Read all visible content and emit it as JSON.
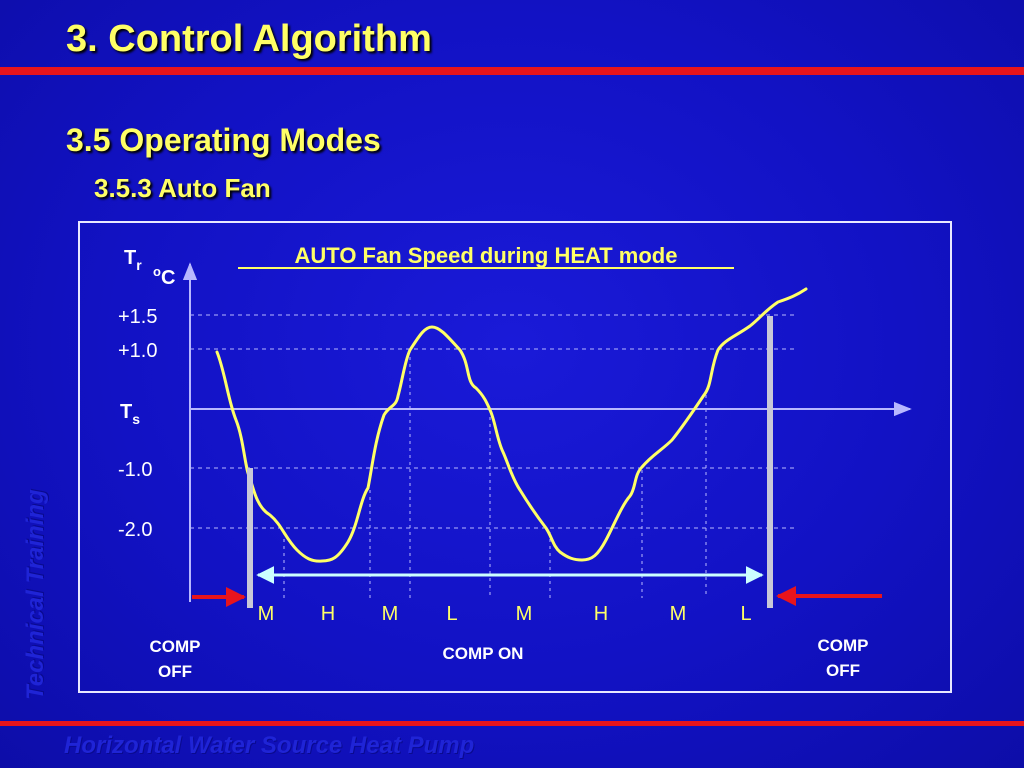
{
  "slide": {
    "title": "3. Control Algorithm",
    "section": "3.5 Operating Modes",
    "subsection": "3.5.3 Auto Fan",
    "side_text": "Technical Training",
    "footer_text": "Horizontal Water Source Heat Pump"
  },
  "diagram": {
    "heading": "AUTO Fan Speed during HEAT mode",
    "y_axis": {
      "symbol": "T",
      "subscript": "r",
      "unit": "oC"
    },
    "levels": [
      {
        "label": "+1.5",
        "value": 1.5
      },
      {
        "label": "+1.0",
        "value": 1.0
      },
      {
        "label": "-1.0",
        "value": -1.0
      },
      {
        "label": "-2.0",
        "value": -2.0
      }
    ],
    "setpoint": {
      "symbol": "T",
      "subscript": "s",
      "value": 0
    },
    "fan_speeds": [
      "M",
      "H",
      "M",
      "L",
      "M",
      "H",
      "M",
      "L"
    ],
    "comp_off_left": [
      "COMP",
      "OFF"
    ],
    "comp_on": "COMP ON",
    "comp_off_right": [
      "COMP",
      "OFF"
    ],
    "colors": {
      "curve": "#ffff66",
      "arrow_red": "#e8141c",
      "span_arrow": "#ccffff",
      "text": "#ffffff",
      "heading": "#ffff66",
      "axis": "#b8b8ff"
    }
  }
}
